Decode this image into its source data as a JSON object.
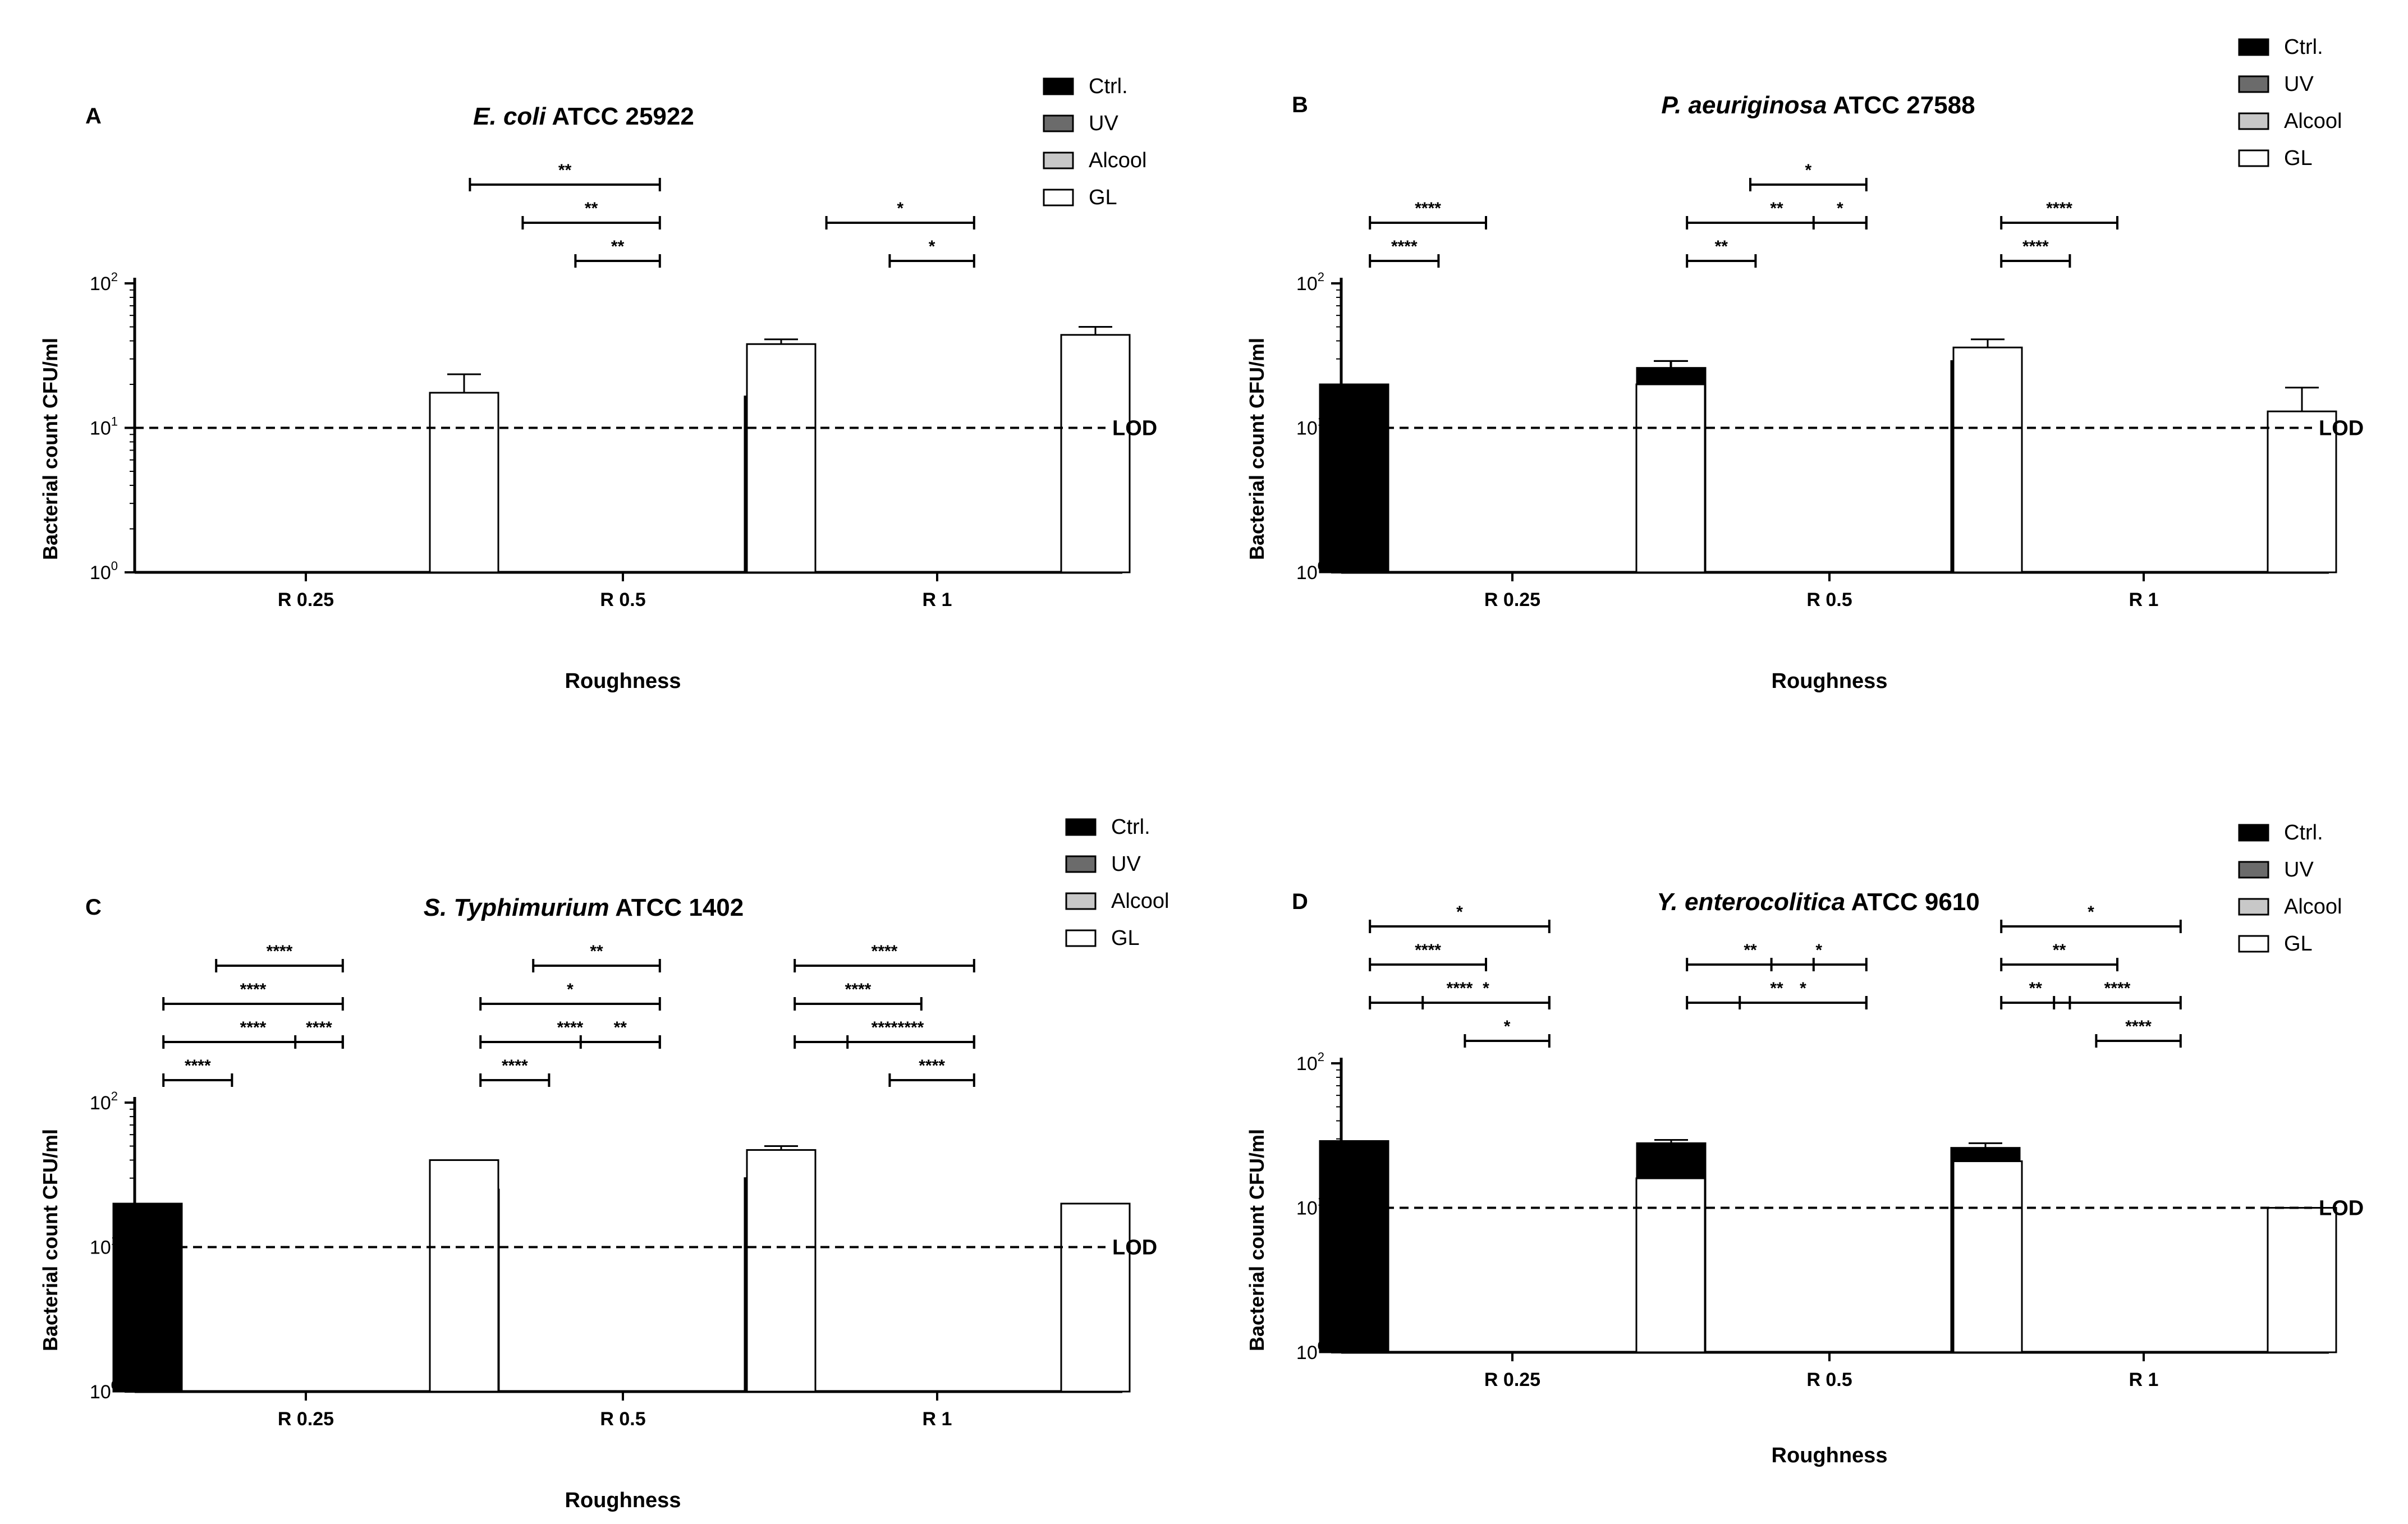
{
  "colors": {
    "ctrl": "#000000",
    "uv": "#6b6b6b",
    "alcool": "#c8c8c8",
    "gl": "#ffffff",
    "axis": "#000000"
  },
  "chart_data": [
    {
      "panel": "A",
      "type": "bar",
      "title_italic": "E. coli",
      "title_rest": " ATCC 25922",
      "xlabel": "Roughness",
      "ylabel": "Bacterial count CFU/ml",
      "y_scale": "log10",
      "ylim": [
        1,
        100
      ],
      "yticks": [
        {
          "base": "10",
          "exp": "0"
        },
        {
          "base": "10",
          "exp": "1"
        },
        {
          "base": "10",
          "exp": "2"
        }
      ],
      "categories": [
        "R 0.25",
        "R 0.5",
        "R 1"
      ],
      "legend": [
        "Ctrl.",
        "UV",
        "Alcool",
        "GL"
      ],
      "legend_position": "top-right",
      "lod": {
        "value": 10,
        "label": "LOD"
      },
      "series": [
        {
          "name": "Ctrl.",
          "values": [
            null,
            null,
            16.5
          ],
          "err": [
            0,
            0,
            15
          ]
        },
        {
          "name": "UV",
          "values": [
            null,
            null,
            null
          ],
          "err": [
            0,
            0,
            0
          ]
        },
        {
          "name": "Alcool",
          "values": [
            null,
            null,
            null
          ],
          "err": [
            0,
            0,
            0
          ]
        },
        {
          "name": "GL",
          "values": [
            17.5,
            38,
            44
          ],
          "err": [
            6,
            3,
            6
          ]
        }
      ],
      "significance": [
        {
          "cat": 1,
          "from": -1.45,
          "to": 0.35,
          "level": 2,
          "label": "**"
        },
        {
          "cat": 1,
          "from": -0.95,
          "to": 0.35,
          "level": 1,
          "label": "**"
        },
        {
          "cat": 1,
          "from": -0.45,
          "to": 0.35,
          "level": 0,
          "label": "**"
        },
        {
          "cat": 2,
          "from": -1.05,
          "to": 0.35,
          "level": 1,
          "label": "*"
        },
        {
          "cat": 2,
          "from": -0.45,
          "to": 0.35,
          "level": 0,
          "label": "*"
        }
      ]
    },
    {
      "panel": "B",
      "type": "bar",
      "title_italic": "P. aeuriginosa",
      "title_rest": " ATCC 27588",
      "xlabel": "Roughness",
      "ylabel": "Bacterial count CFU/ml",
      "y_scale": "log10",
      "ylim": [
        1,
        100
      ],
      "yticks": [
        {
          "base": "10",
          "exp": "0"
        },
        {
          "base": "10",
          "exp": "1"
        },
        {
          "base": "10",
          "exp": "2"
        }
      ],
      "categories": [
        "R 0.25",
        "R 0.5",
        "R 1"
      ],
      "legend": [
        "Ctrl.",
        "UV",
        "Alcool",
        "GL"
      ],
      "legend_position": "top-right",
      "lod": {
        "value": 10,
        "label": "LOD"
      },
      "series": [
        {
          "name": "Ctrl.",
          "values": [
            20,
            26,
            29
          ],
          "err": [
            0,
            3,
            0
          ]
        },
        {
          "name": "UV",
          "values": [
            null,
            null,
            null
          ],
          "err": [
            0,
            0,
            0
          ]
        },
        {
          "name": "Alcool",
          "values": [
            null,
            null,
            null
          ],
          "err": [
            0,
            0,
            0
          ]
        },
        {
          "name": "GL",
          "values": [
            20,
            36,
            13
          ],
          "err": [
            9,
            5,
            6
          ]
        }
      ],
      "significance": [
        {
          "cat": 0,
          "from": -1.35,
          "to": -0.7,
          "level": 0,
          "label": "****"
        },
        {
          "cat": 0,
          "from": -1.35,
          "to": -0.25,
          "level": 1,
          "label": "****"
        },
        {
          "cat": 1,
          "from": -1.35,
          "to": -0.7,
          "level": 0,
          "label": "**"
        },
        {
          "cat": 1,
          "from": -1.35,
          "to": 0.35,
          "level": 1,
          "label": "**"
        },
        {
          "cat": 1,
          "from": -0.75,
          "to": 0.35,
          "level": 2,
          "label": "*"
        },
        {
          "cat": 1,
          "from": -0.15,
          "to": 0.35,
          "level": 1,
          "label": "*"
        },
        {
          "cat": 2,
          "from": -1.35,
          "to": -0.7,
          "level": 0,
          "label": "****"
        },
        {
          "cat": 2,
          "from": -1.35,
          "to": -0.25,
          "level": 1,
          "label": "****"
        }
      ]
    },
    {
      "panel": "C",
      "type": "bar",
      "title_italic": "S. Typhimurium",
      "title_rest": " ATCC 1402",
      "xlabel": "Roughness",
      "ylabel": "Bacterial count CFU/ml",
      "y_scale": "log10",
      "ylim": [
        1,
        100
      ],
      "yticks": [
        {
          "base": "10",
          "exp": "0"
        },
        {
          "base": "10",
          "exp": "1"
        },
        {
          "base": "10",
          "exp": "2"
        }
      ],
      "categories": [
        "R 0.25",
        "R 0.5",
        "R 1"
      ],
      "legend": [
        "Ctrl.",
        "UV",
        "Alcool",
        "GL"
      ],
      "legend_position": "top-right",
      "lod": {
        "value": 10,
        "label": "LOD"
      },
      "series": [
        {
          "name": "Ctrl.",
          "values": [
            20,
            25,
            30
          ],
          "err": [
            0,
            0,
            0
          ]
        },
        {
          "name": "UV",
          "values": [
            null,
            null,
            null
          ],
          "err": [
            0,
            0,
            0
          ]
        },
        {
          "name": "Alcool",
          "values": [
            null,
            null,
            null
          ],
          "err": [
            0,
            0,
            0
          ]
        },
        {
          "name": "GL",
          "values": [
            40,
            47,
            20
          ],
          "err": [
            0,
            3,
            0
          ]
        }
      ],
      "significance": [
        {
          "cat": 0,
          "from": -1.35,
          "to": -0.7,
          "level": 0,
          "label": "****"
        },
        {
          "cat": 0,
          "from": -1.35,
          "to": 0.35,
          "level": 1,
          "label": "****"
        },
        {
          "cat": 0,
          "from": -0.1,
          "to": 0.35,
          "level": 1,
          "label": "****"
        },
        {
          "cat": 0,
          "from": -1.35,
          "to": 0.35,
          "level": 2,
          "label": "****"
        },
        {
          "cat": 0,
          "from": -0.85,
          "to": 0.35,
          "level": 3,
          "label": "****"
        },
        {
          "cat": 1,
          "from": -1.35,
          "to": -0.7,
          "level": 0,
          "label": "****"
        },
        {
          "cat": 1,
          "from": -1.35,
          "to": 0.35,
          "level": 1,
          "label": "****"
        },
        {
          "cat": 1,
          "from": -0.4,
          "to": 0.35,
          "level": 1,
          "label": "**"
        },
        {
          "cat": 1,
          "from": -1.35,
          "to": 0.35,
          "level": 2,
          "label": "*"
        },
        {
          "cat": 1,
          "from": -0.85,
          "to": 0.35,
          "level": 3,
          "label": "**"
        },
        {
          "cat": 2,
          "from": -0.45,
          "to": 0.35,
          "level": 0,
          "label": "****"
        },
        {
          "cat": 2,
          "from": -1.35,
          "to": 0.35,
          "level": 1,
          "label": "****"
        },
        {
          "cat": 2,
          "from": -0.85,
          "to": 0.35,
          "level": 1,
          "label": "****"
        },
        {
          "cat": 2,
          "from": -1.35,
          "to": -0.15,
          "level": 2,
          "label": "****"
        },
        {
          "cat": 2,
          "from": -1.35,
          "to": 0.35,
          "level": 3,
          "label": "****"
        }
      ]
    },
    {
      "panel": "D",
      "type": "bar",
      "title_italic": "Y. enterocolitica",
      "title_rest": " ATCC 9610",
      "xlabel": "Roughness",
      "ylabel": "Bacterial count CFU/ml",
      "y_scale": "log10",
      "ylim": [
        1,
        100
      ],
      "yticks": [
        {
          "base": "10",
          "exp": "0"
        },
        {
          "base": "10",
          "exp": "1"
        },
        {
          "base": "10",
          "exp": "2"
        }
      ],
      "categories": [
        "R 0.25",
        "R 0.5",
        "R 1"
      ],
      "legend": [
        "Ctrl.",
        "UV",
        "Alcool",
        "GL"
      ],
      "legend_position": "top-right",
      "lod": {
        "value": 10,
        "label": "LOD"
      },
      "series": [
        {
          "name": "Ctrl.",
          "values": [
            29,
            28,
            26
          ],
          "err": [
            0,
            1.5,
            2
          ]
        },
        {
          "name": "UV",
          "values": [
            null,
            null,
            null
          ],
          "err": [
            0,
            0,
            0
          ]
        },
        {
          "name": "Alcool",
          "values": [
            null,
            null,
            null
          ],
          "err": [
            0,
            0,
            0
          ]
        },
        {
          "name": "GL",
          "values": [
            16,
            21,
            10
          ],
          "err": [
            3,
            3,
            0
          ]
        }
      ],
      "significance": [
        {
          "cat": 0,
          "from": -0.45,
          "to": 0.35,
          "level": 0,
          "label": "*"
        },
        {
          "cat": 0,
          "from": -1.35,
          "to": 0.35,
          "level": 1,
          "label": "****"
        },
        {
          "cat": 0,
          "from": -0.85,
          "to": 0.35,
          "level": 1,
          "label": "*"
        },
        {
          "cat": 0,
          "from": -1.35,
          "to": -0.25,
          "level": 2,
          "label": "****"
        },
        {
          "cat": 0,
          "from": -1.35,
          "to": 0.35,
          "level": 3,
          "label": "*"
        },
        {
          "cat": 1,
          "from": -1.35,
          "to": 0.35,
          "level": 1,
          "label": "**"
        },
        {
          "cat": 1,
          "from": -0.85,
          "to": 0.35,
          "level": 1,
          "label": "*"
        },
        {
          "cat": 1,
          "from": -1.35,
          "to": -0.15,
          "level": 2,
          "label": "**"
        },
        {
          "cat": 1,
          "from": -0.55,
          "to": 0.35,
          "level": 2,
          "label": "*"
        },
        {
          "cat": 2,
          "from": -0.45,
          "to": 0.35,
          "level": 0,
          "label": "****"
        },
        {
          "cat": 2,
          "from": -1.35,
          "to": -0.7,
          "level": 1,
          "label": "**"
        },
        {
          "cat": 2,
          "from": -0.85,
          "to": 0.35,
          "level": 1,
          "label": "****"
        },
        {
          "cat": 2,
          "from": -1.35,
          "to": -0.25,
          "level": 2,
          "label": "**"
        },
        {
          "cat": 2,
          "from": -1.35,
          "to": 0.35,
          "level": 3,
          "label": "*"
        }
      ]
    }
  ]
}
